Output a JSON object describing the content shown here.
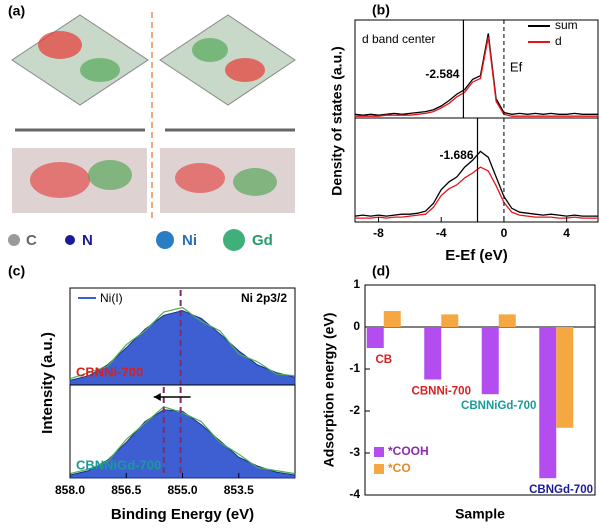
{
  "structure_panel": {
    "panel_label": "(a)",
    "legend": [
      "C",
      "N",
      "Ni",
      "Gd"
    ]
  },
  "chart_data": [
    {
      "type": "line",
      "panel_label": "(b)",
      "xlabel": "E-Ef (eV)",
      "ylabel": "Density of states (a.u.)",
      "xlim": [
        -9.5,
        6
      ],
      "xticks": [
        -8,
        -4,
        0,
        4
      ],
      "x": [
        -9.5,
        -9,
        -8.5,
        -8,
        -7.5,
        -7,
        -6.5,
        -6,
        -5.5,
        -5,
        -4.5,
        -4,
        -3.5,
        -3,
        -2.5,
        -2,
        -1.5,
        -1,
        -0.5,
        0,
        0.5,
        1,
        1.5,
        2,
        2.5,
        3,
        3.5,
        4,
        4.5,
        5,
        5.5,
        6
      ],
      "ylim": [
        0,
        10
      ],
      "fermi_level": 0,
      "fermi_label": "Ef",
      "band_center_label": "d band center",
      "panels": [
        {
          "series": [
            {
              "name": "sum",
              "color": "#000000",
              "values": [
                0.4,
                0.3,
                0.4,
                0.3,
                0.4,
                0.5,
                0.4,
                0.5,
                0.6,
                0.7,
                0.9,
                1.3,
                1.9,
                2.6,
                3.1,
                4.2,
                4.6,
                9.2,
                2.1,
                0.6,
                0.4,
                0.5,
                0.4,
                0.5,
                0.4,
                0.5,
                0.4,
                0.4,
                0.5,
                0.4,
                0.4,
                0.4
              ]
            },
            {
              "name": "d",
              "color": "#e8141b",
              "values": [
                0.2,
                0.2,
                0.2,
                0.2,
                0.3,
                0.3,
                0.3,
                0.3,
                0.4,
                0.5,
                0.7,
                1.1,
                1.6,
                2.3,
                2.8,
                3.9,
                4.3,
                8.8,
                1.8,
                0.4,
                0.2,
                0.2,
                0.2,
                0.2,
                0.2,
                0.2,
                0.2,
                0.2,
                0.2,
                0.2,
                0.2,
                0.2
              ]
            }
          ],
          "d_band_center": -2.584
        },
        {
          "series": [
            {
              "color": "#000000",
              "values": [
                0.6,
                0.7,
                0.6,
                0.7,
                0.6,
                0.7,
                0.8,
                0.8,
                0.9,
                1.1,
                1.9,
                3.3,
                4.1,
                4.6,
                5.6,
                6.3,
                7.2,
                6.6,
                4.6,
                2.6,
                1.4,
                1.0,
                0.9,
                0.8,
                0.7,
                0.8,
                0.7,
                0.6,
                0.7,
                0.6,
                0.6,
                0.6
              ]
            },
            {
              "color": "#e8141b",
              "values": [
                0.4,
                0.4,
                0.4,
                0.5,
                0.4,
                0.5,
                0.5,
                0.6,
                0.7,
                0.8,
                1.5,
                2.7,
                3.4,
                3.8,
                4.5,
                5.0,
                5.6,
                5.2,
                3.7,
                2.0,
                1.0,
                0.7,
                0.6,
                0.5,
                0.5,
                0.5,
                0.4,
                0.4,
                0.5,
                0.4,
                0.4,
                0.4
              ]
            }
          ],
          "d_band_center": -1.686
        }
      ]
    },
    {
      "type": "area",
      "panel_label": "(c)",
      "xlabel": "Binding Energy (eV)",
      "ylabel": "Intensity (a.u.)",
      "xlim": [
        858,
        852
      ],
      "xticks": [
        {
          "value": 858,
          "label": "858.0"
        },
        856.5,
        {
          "value": 855,
          "label": "855.0"
        },
        853.5
      ],
      "x": [
        858,
        857.5,
        857,
        856.5,
        856,
        855.5,
        855,
        854.5,
        854,
        853.5,
        853,
        852.5,
        852
      ],
      "ylim": [
        0,
        6
      ],
      "legend": "Ni(I)",
      "region_label": "Ni 2p3/2",
      "fit_color": "#3d5fd1",
      "raw_color": "#4caf50",
      "peak_color": "#7b2d6b",
      "panels": [
        {
          "name": "CBNNi-700",
          "name_color": "#d82020",
          "fit": [
            0.3,
            0.6,
            1.3,
            2.4,
            3.6,
            4.5,
            4.8,
            4.3,
            3.3,
            2.2,
            1.3,
            0.8,
            0.5
          ],
          "raw": [
            0.4,
            0.8,
            1.2,
            2.6,
            3.5,
            4.7,
            5.0,
            4.1,
            3.5,
            2.0,
            1.5,
            0.7,
            0.6
          ],
          "peak_lines": [
            855.05
          ]
        },
        {
          "name": "CBNNiGd-700",
          "name_color": "#1a9a9a",
          "fit": [
            0.2,
            0.5,
            1.2,
            2.4,
            3.8,
            4.6,
            4.5,
            3.6,
            2.5,
            1.4,
            0.8,
            0.4,
            0.2
          ],
          "raw": [
            0.3,
            0.6,
            1.1,
            2.6,
            3.7,
            4.8,
            4.4,
            3.8,
            2.4,
            1.6,
            0.7,
            0.5,
            0.3
          ],
          "peak_lines": [
            855.5,
            855.05
          ]
        }
      ]
    },
    {
      "type": "bar",
      "panel_label": "(d)",
      "xlabel": "Sample",
      "ylabel": "Adsorption energy (eV)",
      "categories": [
        "CB",
        "CBNNi-700",
        "CBNNiGd-700",
        "CBNGd-700"
      ],
      "category_colors": [
        "#d82020",
        "#d82020",
        "#1a9a9a",
        "#1a1a9a"
      ],
      "series": [
        {
          "name": "*COOH",
          "color": "#b44df0",
          "values": [
            -0.5,
            -1.25,
            -1.6,
            -3.6
          ]
        },
        {
          "name": "*CO",
          "color": "#f5a742",
          "values": [
            0.38,
            0.3,
            0.3,
            -2.4
          ]
        }
      ],
      "ylim": [
        -4,
        1
      ],
      "yticks": [
        -4,
        -3,
        -2,
        -1,
        0,
        1
      ]
    }
  ]
}
